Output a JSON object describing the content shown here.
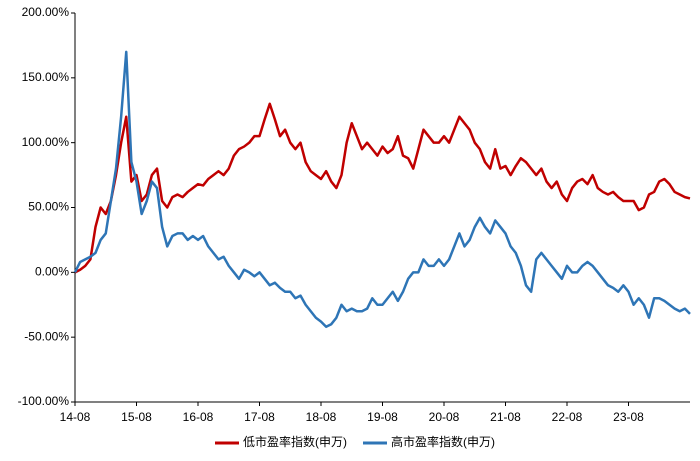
{
  "chart_data": {
    "type": "line",
    "categories": [
      "14-08",
      null,
      null,
      null,
      null,
      null,
      null,
      null,
      null,
      null,
      null,
      null,
      "15-08",
      null,
      null,
      null,
      null,
      null,
      null,
      null,
      null,
      null,
      null,
      null,
      "16-08",
      null,
      null,
      null,
      null,
      null,
      null,
      null,
      null,
      null,
      null,
      null,
      "17-08",
      null,
      null,
      null,
      null,
      null,
      null,
      null,
      null,
      null,
      null,
      null,
      "18-08",
      null,
      null,
      null,
      null,
      null,
      null,
      null,
      null,
      null,
      null,
      null,
      "19-08",
      null,
      null,
      null,
      null,
      null,
      null,
      null,
      null,
      null,
      null,
      null,
      "20-08",
      null,
      null,
      null,
      null,
      null,
      null,
      null,
      null,
      null,
      null,
      null,
      "21-08",
      null,
      null,
      null,
      null,
      null,
      null,
      null,
      null,
      null,
      null,
      null,
      "22-08",
      null,
      null,
      null,
      null,
      null,
      null,
      null,
      null,
      null,
      null,
      null,
      "23-08",
      null,
      null,
      null,
      null,
      null,
      null,
      null,
      null,
      null,
      null,
      null,
      null
    ],
    "series": [
      {
        "name": "低市盈率指数(申万)",
        "color": "#c00000",
        "values": [
          0,
          2,
          5,
          10,
          35,
          50,
          45,
          55,
          75,
          100,
          120,
          70,
          75,
          55,
          60,
          75,
          80,
          55,
          50,
          58,
          60,
          58,
          62,
          65,
          68,
          67,
          72,
          75,
          78,
          75,
          80,
          90,
          95,
          97,
          100,
          105,
          105,
          118,
          130,
          118,
          105,
          110,
          100,
          95,
          100,
          85,
          78,
          75,
          72,
          78,
          70,
          65,
          75,
          100,
          115,
          105,
          95,
          100,
          95,
          90,
          97,
          92,
          95,
          105,
          90,
          88,
          80,
          95,
          110,
          105,
          100,
          100,
          105,
          100,
          110,
          120,
          115,
          110,
          100,
          95,
          85,
          80,
          95,
          80,
          82,
          75,
          82,
          88,
          85,
          80,
          75,
          80,
          70,
          65,
          70,
          60,
          55,
          65,
          70,
          72,
          68,
          75,
          65,
          62,
          60,
          62,
          58,
          55,
          55,
          55,
          48,
          50,
          60,
          62,
          70,
          72,
          68,
          62,
          60,
          58,
          57
        ]
      },
      {
        "name": "高市盈率指数(申万)",
        "color": "#2e75b6",
        "values": [
          0,
          8,
          10,
          12,
          15,
          25,
          30,
          55,
          80,
          120,
          170,
          85,
          70,
          45,
          55,
          70,
          65,
          35,
          20,
          28,
          30,
          30,
          25,
          28,
          25,
          28,
          20,
          15,
          10,
          12,
          5,
          0,
          -5,
          2,
          0,
          -3,
          0,
          -5,
          -10,
          -8,
          -12,
          -15,
          -15,
          -20,
          -18,
          -25,
          -30,
          -35,
          -38,
          -42,
          -40,
          -35,
          -25,
          -30,
          -28,
          -30,
          -30,
          -28,
          -20,
          -25,
          -25,
          -20,
          -15,
          -22,
          -15,
          -5,
          0,
          0,
          10,
          5,
          5,
          10,
          5,
          10,
          20,
          30,
          20,
          25,
          35,
          42,
          35,
          30,
          40,
          35,
          30,
          20,
          15,
          5,
          -10,
          -15,
          10,
          15,
          10,
          5,
          0,
          -5,
          5,
          0,
          0,
          5,
          8,
          5,
          0,
          -5,
          -10,
          -12,
          -15,
          -10,
          -15,
          -25,
          -20,
          -25,
          -35,
          -20,
          -20,
          -22,
          -25,
          -28,
          -30,
          -28,
          -32
        ]
      }
    ],
    "ylim": [
      -100,
      200
    ],
    "yticks": [
      {
        "value": -100,
        "label": "-100.00%"
      },
      {
        "value": -50,
        "label": "-50.00%"
      },
      {
        "value": 0,
        "label": "0.00%"
      },
      {
        "value": 50,
        "label": "50.00%"
      },
      {
        "value": 100,
        "label": "100.00%"
      },
      {
        "value": 150,
        "label": "150.00%"
      },
      {
        "value": 200,
        "label": "200.00%"
      }
    ],
    "grid": false,
    "legend": "bottom"
  }
}
